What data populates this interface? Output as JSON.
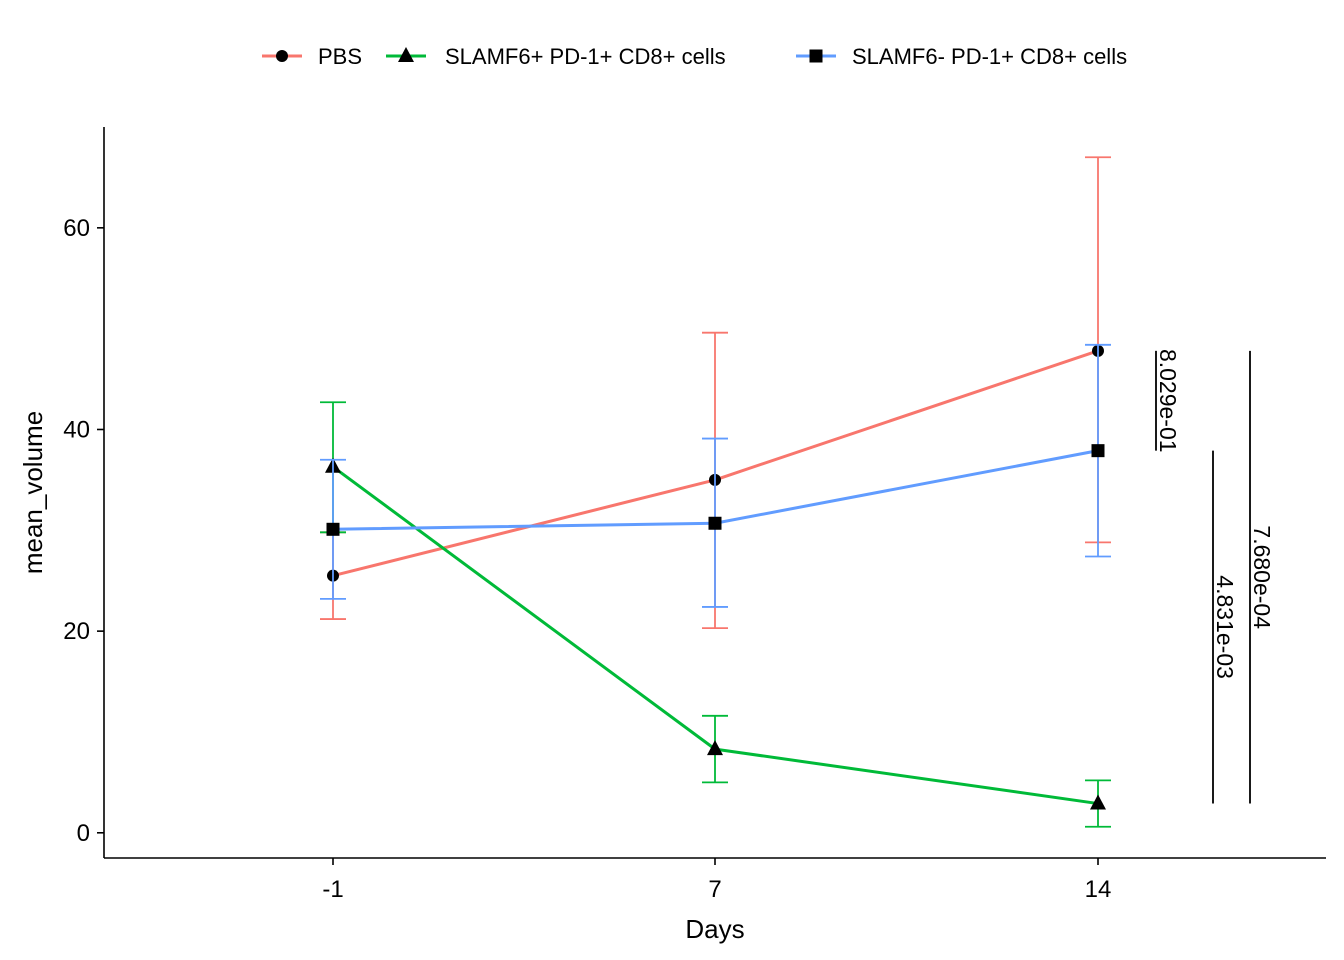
{
  "chart_data": {
    "type": "line",
    "xlabel": "Days",
    "ylabel": "mean_volume",
    "categories": [
      "-1",
      "7",
      "14"
    ],
    "ylim": [
      -2.5,
      70
    ],
    "yticks": [
      0,
      20,
      40,
      60
    ],
    "grid": false,
    "legend_position": "top",
    "series": [
      {
        "name": "PBS",
        "color": "#F8766D",
        "marker": "circle",
        "values": [
          25.5,
          35.0,
          47.8
        ],
        "error_low": [
          21.2,
          20.3,
          28.8
        ],
        "error_high": [
          29.8,
          49.6,
          67.0
        ]
      },
      {
        "name": "SLAMF6+ PD-1+ CD8+ cells",
        "color": "#00BA38",
        "marker": "triangle",
        "values": [
          36.3,
          8.3,
          2.9
        ],
        "error_low": [
          29.8,
          5.0,
          0.6
        ],
        "error_high": [
          42.7,
          11.6,
          5.2
        ]
      },
      {
        "name": "SLAMF6- PD-1+ CD8+ cells",
        "color": "#619CFF",
        "marker": "square",
        "values": [
          30.1,
          30.7,
          37.9
        ],
        "error_low": [
          23.2,
          22.4,
          27.4
        ],
        "error_high": [
          37.0,
          39.1,
          48.4
        ]
      }
    ],
    "annotations": [
      {
        "text": "8.029e-01",
        "y_from": 37.9,
        "y_to": 47.8,
        "slot": 1
      },
      {
        "text": "4.831e-03",
        "y_from": 2.9,
        "y_to": 37.9,
        "slot": 2
      },
      {
        "text": "7.680e-04",
        "y_from": 2.9,
        "y_to": 47.8,
        "slot": 3
      }
    ]
  }
}
